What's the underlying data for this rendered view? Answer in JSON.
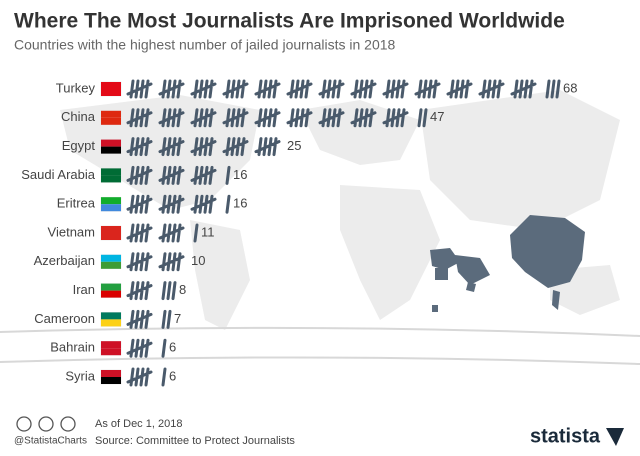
{
  "chart_data": {
    "type": "tally",
    "title": "Where The Most Journalists Are Imprisoned Worldwide",
    "subtitle": "Countries with the highest number of jailed journalists in 2018",
    "categories": [
      "Turkey",
      "China",
      "Egypt",
      "Saudi Arabia",
      "Eritrea",
      "Vietnam",
      "Azerbaijan",
      "Iran",
      "Cameroon",
      "Bahrain",
      "Syria"
    ],
    "values": [
      68,
      47,
      25,
      16,
      16,
      11,
      10,
      8,
      7,
      6,
      6
    ],
    "color": "#4a5a6b",
    "notes": {
      "date": "As of Dec 1, 2018",
      "source": "Source: Committee to Protect Journalists",
      "handle": "@StatistaCharts",
      "brand": "statista"
    }
  }
}
